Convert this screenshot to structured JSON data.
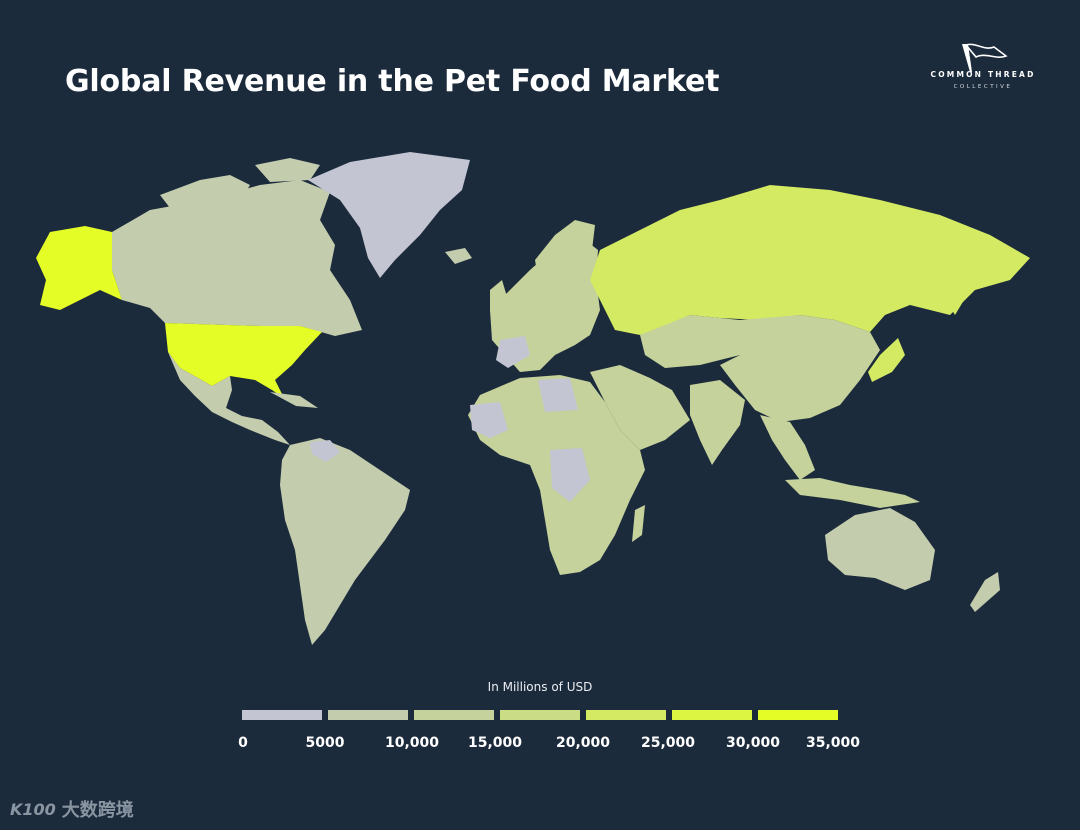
{
  "title": "Global Revenue in the Pet Food Market",
  "logo": {
    "name": "COMMON THREAD",
    "subtitle": "COLLECTIVE",
    "icon": "flag-icon"
  },
  "legend": {
    "title": "In Millions of USD",
    "ticks": [
      "0",
      "5000",
      "10,000",
      "15,000",
      "20,000",
      "25,000",
      "30,000",
      "35,000"
    ],
    "bins": [
      {
        "range": [
          0,
          5000
        ],
        "color": "#c3c5d2"
      },
      {
        "range": [
          5000,
          10000
        ],
        "color": "#c4ccae"
      },
      {
        "range": [
          10000,
          15000
        ],
        "color": "#c5d29b"
      },
      {
        "range": [
          15000,
          20000
        ],
        "color": "#cbdc87"
      },
      {
        "range": [
          20000,
          25000
        ],
        "color": "#d4ea63"
      },
      {
        "range": [
          25000,
          30000
        ],
        "color": "#dcf542"
      },
      {
        "range": [
          30000,
          35000
        ],
        "color": "#e4fd27"
      }
    ]
  },
  "map_colors": {
    "ocean": "#1c2b3c",
    "lowest": "#c3c5d2",
    "low": "#c4ccae",
    "mid": "#c5d29b",
    "high": "#d4ea63",
    "highest": "#e4fd27"
  },
  "watermark": {
    "mark": "K100",
    "text": "大数跨境"
  }
}
